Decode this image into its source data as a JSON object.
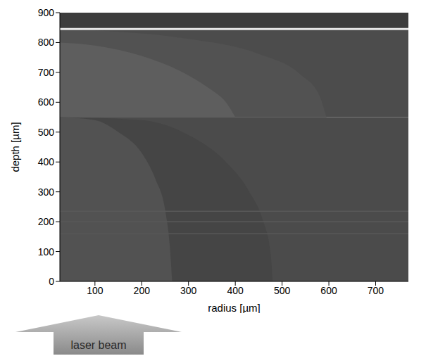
{
  "chart_data": {
    "type": "region_map",
    "xlabel": "radius [µm]",
    "ylabel": "depth [µm]",
    "annotation": "laser beam",
    "xlim": [
      25,
      770
    ],
    "ylim": [
      0,
      900
    ],
    "xticks": [
      100,
      200,
      300,
      400,
      500,
      600,
      700
    ],
    "yticks": [
      0,
      100,
      200,
      300,
      400,
      500,
      600,
      700,
      800,
      900
    ],
    "bands": [
      {
        "from": 845,
        "to": 900,
        "color": "#3c3c3c"
      },
      {
        "from": 550,
        "to": 845,
        "color": "#4c4c4c"
      },
      {
        "from": 0,
        "to": 550,
        "color": "#4b4b4b"
      }
    ],
    "regions": [
      {
        "color": "#525252",
        "base": 550,
        "points": [
          [
            25,
            845
          ],
          [
            300,
            812
          ],
          [
            450,
            762
          ],
          [
            540,
            692
          ],
          [
            580,
            622
          ],
          [
            595,
            550
          ]
        ]
      },
      {
        "color": "#5e5e5e",
        "base": 550,
        "points": [
          [
            25,
            800
          ],
          [
            100,
            790
          ],
          [
            200,
            755
          ],
          [
            300,
            690
          ],
          [
            350,
            640
          ],
          [
            380,
            600
          ],
          [
            400,
            550
          ]
        ]
      },
      {
        "color": "#454545",
        "base": 0,
        "points": [
          [
            25,
            550
          ],
          [
            200,
            540
          ],
          [
            300,
            490
          ],
          [
            380,
            400
          ],
          [
            430,
            300
          ],
          [
            460,
            200
          ],
          [
            475,
            100
          ],
          [
            480,
            0
          ]
        ]
      },
      {
        "color": "#525252",
        "base": 0,
        "points": [
          [
            25,
            550
          ],
          [
            100,
            540
          ],
          [
            150,
            500
          ],
          [
            200,
            430
          ],
          [
            230,
            340
          ],
          [
            250,
            240
          ],
          [
            260,
            120
          ],
          [
            265,
            0
          ]
        ]
      }
    ],
    "lines": [
      {
        "depth": 845,
        "color": "#e6e6e6"
      },
      {
        "depth": 235,
        "color": "#595959"
      },
      {
        "depth": 200,
        "color": "#585858"
      },
      {
        "depth": 160,
        "color": "#575757"
      }
    ]
  }
}
